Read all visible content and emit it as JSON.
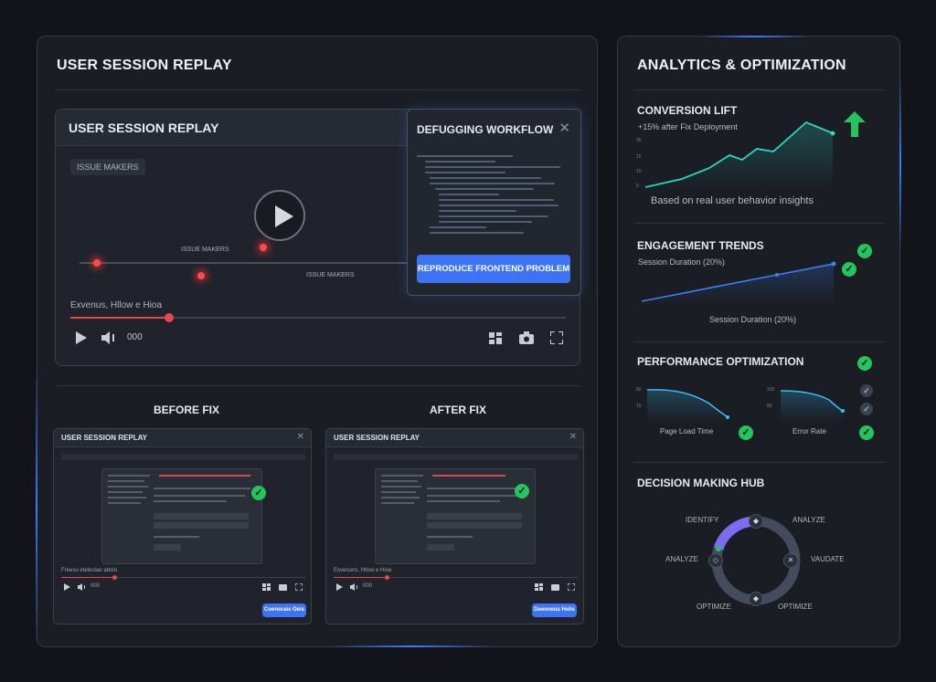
{
  "left": {
    "title": "USER SESSION REPLAY",
    "replay": {
      "title": "USER SESSION REPLAY",
      "badge": "ISSUE MAKERS",
      "marker_label_1": "ISSUE MAKERS",
      "marker_label_2": "ISSUE MAKERS",
      "caption": "Exvenus, Hllow e Hioa",
      "time": "000",
      "progress": 0.2
    },
    "debug": {
      "title": "DEFUGGING WORKFLOW",
      "button": "REPRODUCE FRONTEND PROBLEM"
    },
    "before": {
      "heading": "BEFORE FIX",
      "win_title": "USER SESSION REPLAY",
      "caption": "Freesu etelestae abolo",
      "time": "000",
      "button": "Coenorais Oeis"
    },
    "after": {
      "heading": "AFTER FIX",
      "win_title": "USER SESSION REPLAY",
      "caption": "Exvenuns, Hllow e Hioa",
      "time": "000",
      "button": "Deeoneus Helis"
    }
  },
  "right": {
    "title": "ANALYTICS & OPTIMIZATION",
    "conversion": {
      "title": "CONVERSION LIFT",
      "subtitle": "+15% after Fix Deployment",
      "footer": "Based on real user behavior insights",
      "yticks": [
        "30",
        "15",
        "10",
        "5",
        "0"
      ]
    },
    "engagement": {
      "title": "ENGAGEMENT TRENDS",
      "subtitle": "Session Duration (20%)",
      "footer": "Session Duration (20%)"
    },
    "performance": {
      "title": "PERFORMANCE OPTIMIZATION",
      "chart1_label": "Page Load Time",
      "chart2_label": "Error Rate",
      "chart1_ticks": [
        "50",
        "15"
      ],
      "chart2_ticks": [
        "100",
        "80"
      ]
    },
    "decision": {
      "title": "DECISION MAKING HUB",
      "identify": "IDENTIFY",
      "analyze_right": "ANALYZE",
      "analyze_left": "ANALYZE",
      "validate": "VAUDATE",
      "optimize_left": "OPTIMIZE",
      "optimize_right": "OPTIMIZE"
    }
  },
  "colors": {
    "accent": "#3d74f5",
    "success": "#22c55e",
    "alert": "#ff4a4a",
    "chart_teal": "#2dd4bf",
    "chart_blue": "#3b82f6"
  },
  "icons": [
    "play-icon",
    "volume-icon",
    "screen-icon",
    "camera-icon",
    "fullscreen-icon",
    "close-icon",
    "check-icon",
    "arrow-up-icon",
    "bug-icon"
  ]
}
